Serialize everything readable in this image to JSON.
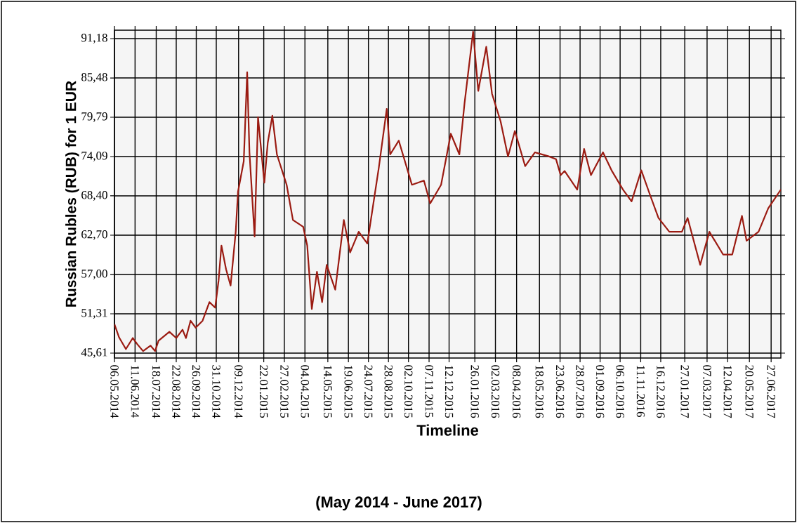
{
  "chart_data": {
    "type": "line",
    "xlabel": "Timeline",
    "ylabel": "Russian Rubles (RUB) for 1 EUR",
    "annotations": [
      "(May 2014 - June 2017)"
    ],
    "color": "#9b1b12",
    "grid": true,
    "xlim": [
      "2014-05-06",
      "2017-07-14"
    ],
    "ylim": [
      44.9,
      92.4
    ],
    "xticks": [
      {
        "value": "2014-05-06",
        "label": "06.05.2014"
      },
      {
        "value": "2014-06-11",
        "label": "11.06.2014"
      },
      {
        "value": "2014-07-18",
        "label": "18.07.2014"
      },
      {
        "value": "2014-08-22",
        "label": "22.08.2014"
      },
      {
        "value": "2014-09-26",
        "label": "26.09.2014"
      },
      {
        "value": "2014-10-31",
        "label": "31.10.2014"
      },
      {
        "value": "2014-12-09",
        "label": "09.12.2014"
      },
      {
        "value": "2015-01-22",
        "label": "22.01.2015"
      },
      {
        "value": "2015-02-27",
        "label": "27.02.2015"
      },
      {
        "value": "2015-04-04",
        "label": "04.04.2015"
      },
      {
        "value": "2015-05-14",
        "label": "14.05.2015"
      },
      {
        "value": "2015-06-19",
        "label": "19.06.2015"
      },
      {
        "value": "2015-07-24",
        "label": "24.07.2015"
      },
      {
        "value": "2015-08-28",
        "label": "28.08.2015"
      },
      {
        "value": "2015-10-02",
        "label": "02.10.2015"
      },
      {
        "value": "2015-11-07",
        "label": "07.11.2015"
      },
      {
        "value": "2015-12-12",
        "label": "12.12.2015"
      },
      {
        "value": "2016-01-26",
        "label": "26.01.2016"
      },
      {
        "value": "2016-03-02",
        "label": "02.03.2016"
      },
      {
        "value": "2016-04-08",
        "label": "08.04.2016"
      },
      {
        "value": "2016-05-18",
        "label": "18.05.2016"
      },
      {
        "value": "2016-06-23",
        "label": "23.06.2016"
      },
      {
        "value": "2016-07-28",
        "label": "28.07.2016"
      },
      {
        "value": "2016-09-01",
        "label": "01.09.2016"
      },
      {
        "value": "2016-10-06",
        "label": "06.10.2016"
      },
      {
        "value": "2016-11-11",
        "label": "11.11.2016"
      },
      {
        "value": "2016-12-16",
        "label": "16.12.2016"
      },
      {
        "value": "2017-01-27",
        "label": "27.01.2017"
      },
      {
        "value": "2017-03-07",
        "label": "07.03.2017"
      },
      {
        "value": "2017-04-12",
        "label": "12.04.2017"
      },
      {
        "value": "2017-05-20",
        "label": "20.05.2017"
      },
      {
        "value": "2017-06-27",
        "label": "27.06.2017"
      }
    ],
    "yticks": [
      {
        "value": 45.61,
        "label": "45,61"
      },
      {
        "value": 51.31,
        "label": "51,31"
      },
      {
        "value": 57.0,
        "label": "57,00"
      },
      {
        "value": 62.7,
        "label": "62,70"
      },
      {
        "value": 68.4,
        "label": "68,40"
      },
      {
        "value": 74.09,
        "label": "74,09"
      },
      {
        "value": 79.79,
        "label": "79,79"
      },
      {
        "value": 85.48,
        "label": "85,48"
      },
      {
        "value": 91.18,
        "label": "91,18"
      }
    ],
    "x": [
      "2014-05-06",
      "2014-05-14",
      "2014-05-26",
      "2014-06-07",
      "2014-06-15",
      "2014-06-25",
      "2014-07-08",
      "2014-07-16",
      "2014-07-22",
      "2014-08-10",
      "2014-08-22",
      "2014-09-02",
      "2014-09-08",
      "2014-09-16",
      "2014-09-25",
      "2014-10-07",
      "2014-10-19",
      "2014-10-29",
      "2014-11-04",
      "2014-11-09",
      "2014-11-17",
      "2014-11-25",
      "2014-12-04",
      "2014-12-08",
      "2014-12-18",
      "2014-12-24",
      "2014-12-28",
      "2015-01-06",
      "2015-01-12",
      "2015-01-23",
      "2015-01-29",
      "2015-02-06",
      "2015-02-14",
      "2015-03-03",
      "2015-03-14",
      "2015-04-01",
      "2015-04-08",
      "2015-04-16",
      "2015-04-25",
      "2015-05-04",
      "2015-05-12",
      "2015-05-27",
      "2015-06-11",
      "2015-06-22",
      "2015-07-07",
      "2015-07-22",
      "2015-08-11",
      "2015-08-25",
      "2015-08-31",
      "2015-09-15",
      "2015-10-08",
      "2015-10-29",
      "2015-11-09",
      "2015-11-28",
      "2015-12-15",
      "2015-12-30",
      "2016-01-08",
      "2016-01-23",
      "2016-02-01",
      "2016-02-15",
      "2016-02-25",
      "2016-03-11",
      "2016-03-24",
      "2016-04-05",
      "2016-04-23",
      "2016-05-10",
      "2016-06-04",
      "2016-06-16",
      "2016-06-24",
      "2016-07-01",
      "2016-07-23",
      "2016-08-04",
      "2016-08-16",
      "2016-09-06",
      "2016-09-21",
      "2016-10-11",
      "2016-10-26",
      "2016-11-12",
      "2016-11-27",
      "2016-12-12",
      "2016-12-31",
      "2017-01-22",
      "2017-02-01",
      "2017-02-23",
      "2017-03-11",
      "2017-04-04",
      "2017-04-20",
      "2017-05-07",
      "2017-05-15",
      "2017-06-05",
      "2017-06-22",
      "2017-07-14"
    ],
    "values": [
      49.8,
      47.9,
      46.2,
      47.8,
      46.9,
      45.9,
      46.7,
      45.9,
      47.4,
      48.7,
      47.8,
      49.0,
      47.8,
      50.3,
      49.3,
      50.3,
      53.0,
      52.2,
      56.1,
      61.2,
      57.8,
      55.4,
      63.2,
      69.0,
      73.4,
      86.3,
      74.7,
      62.5,
      79.8,
      70.3,
      76.1,
      80.0,
      74.4,
      70.0,
      64.9,
      63.9,
      61.2,
      52.0,
      57.4,
      53.0,
      58.4,
      54.8,
      64.9,
      60.2,
      63.2,
      61.5,
      72.4,
      81.0,
      74.4,
      76.4,
      70.0,
      70.6,
      67.3,
      70.0,
      77.4,
      74.4,
      81.8,
      92.2,
      83.6,
      90.0,
      83.2,
      79.2,
      74.1,
      77.8,
      72.7,
      74.7,
      74.1,
      73.7,
      71.4,
      72.0,
      69.3,
      75.2,
      71.4,
      74.7,
      72.1,
      69.3,
      67.6,
      72.1,
      68.6,
      65.2,
      63.2,
      63.2,
      65.2,
      58.4,
      63.2,
      59.9,
      59.9,
      65.5,
      61.9,
      63.2,
      66.6,
      69.3
    ]
  }
}
